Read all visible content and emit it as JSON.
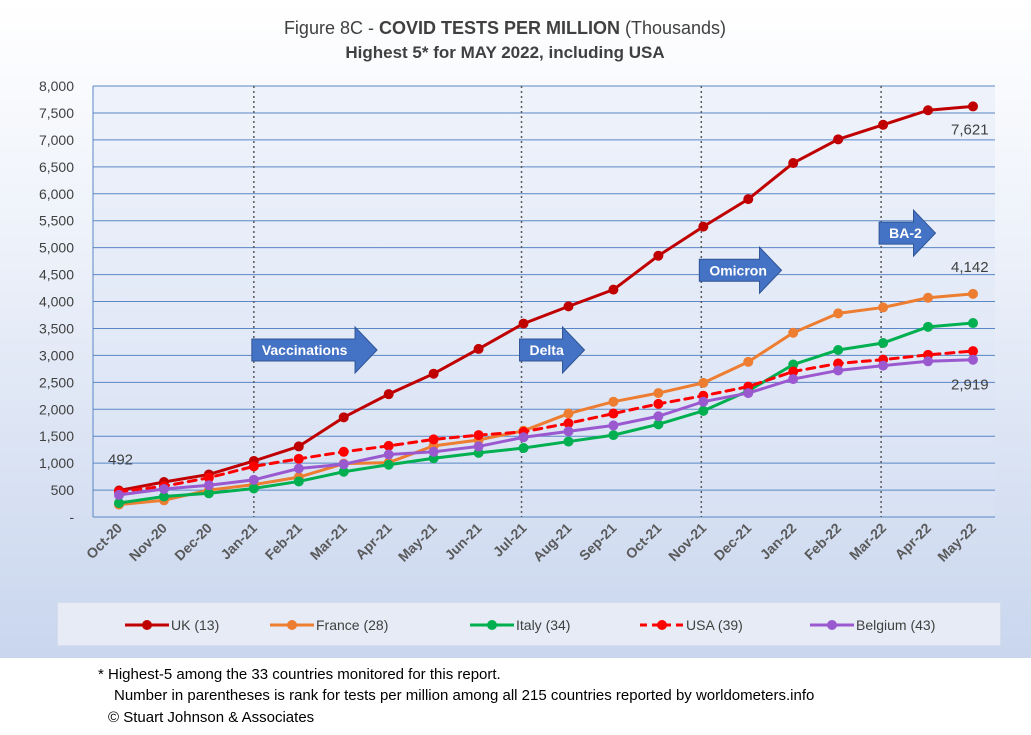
{
  "title": {
    "prefix": "Figure 8C - ",
    "bold": "COVID TESTS PER MILLION",
    "suffix": " (Thousands)",
    "subtitle": "Highest 5* for MAY 2022, including USA"
  },
  "chart_data": {
    "type": "line",
    "categories": [
      "Oct-20",
      "Nov-20",
      "Dec-20",
      "Jan-21",
      "Feb-21",
      "Mar-21",
      "Apr-21",
      "May-21",
      "Jun-21",
      "Jul-21",
      "Aug-21",
      "Sep-21",
      "Oct-21",
      "Nov-21",
      "Dec-21",
      "Jan-22",
      "Feb-22",
      "Mar-22",
      "Apr-22",
      "May-22"
    ],
    "ylim": [
      0,
      8000
    ],
    "yticks": [
      0,
      500,
      1000,
      1500,
      2000,
      2500,
      3000,
      3500,
      4000,
      4500,
      5000,
      5500,
      6000,
      6500,
      7000,
      7500,
      8000
    ],
    "ytick_labels": [
      "-",
      "500",
      "1,000",
      "1,500",
      "2,000",
      "2,500",
      "3,000",
      "3,500",
      "4,000",
      "4,500",
      "5,000",
      "5,500",
      "6,000",
      "6,500",
      "7,000",
      "7,500",
      "8,000"
    ],
    "grid": true,
    "legend_position": "bottom",
    "series": [
      {
        "name": "UK (13)",
        "color": "#c00000",
        "dashed": false,
        "values": [
          492,
          650,
          790,
          1040,
          1310,
          1850,
          2280,
          2660,
          3120,
          3590,
          3910,
          4220,
          4850,
          5390,
          5900,
          6570,
          7010,
          7280,
          7550,
          7621
        ]
      },
      {
        "name": "France (28)",
        "color": "#ed7d31",
        "dashed": false,
        "values": [
          230,
          310,
          500,
          600,
          740,
          990,
          1010,
          1320,
          1430,
          1600,
          1920,
          2140,
          2300,
          2490,
          2880,
          3420,
          3780,
          3890,
          4070,
          4142
        ]
      },
      {
        "name": "Italy (34)",
        "color": "#00b050",
        "dashed": false,
        "values": [
          260,
          380,
          440,
          530,
          660,
          840,
          970,
          1090,
          1190,
          1280,
          1400,
          1520,
          1720,
          1970,
          2340,
          2830,
          3100,
          3230,
          3530,
          3600
        ]
      },
      {
        "name": "USA (39)",
        "color": "#ff0000",
        "dashed": true,
        "values": [
          470,
          570,
          730,
          940,
          1080,
          1210,
          1320,
          1440,
          1520,
          1580,
          1740,
          1920,
          2100,
          2250,
          2420,
          2700,
          2850,
          2920,
          3010,
          3080
        ]
      },
      {
        "name": "Belgium (43)",
        "color": "#9b59d0",
        "dashed": false,
        "values": [
          410,
          520,
          590,
          690,
          900,
          980,
          1160,
          1210,
          1310,
          1480,
          1590,
          1700,
          1870,
          2140,
          2300,
          2560,
          2720,
          2810,
          2890,
          2919
        ]
      }
    ],
    "data_labels": [
      {
        "text": "492",
        "series": 0,
        "index": 0
      },
      {
        "text": "7,621",
        "series": 0,
        "index": 19
      },
      {
        "text": "4,142",
        "series": 1,
        "index": 19
      },
      {
        "text": "2,919",
        "series": 4,
        "index": 19
      }
    ],
    "events": [
      {
        "index": 3,
        "label": "Vaccinations",
        "arrow_y": 3100
      },
      {
        "index": 9,
        "label": "Delta",
        "arrow_y": 3100
      },
      {
        "index": 13,
        "label": "Omicron",
        "arrow_y": 4580
      },
      {
        "index": 17,
        "label": "BA-2",
        "arrow_y": 5270
      }
    ]
  },
  "footnotes": {
    "line1": "* Highest-5 among the 33 countries monitored for this report.",
    "line2": "Number in parentheses is rank for tests per million among all 215 countries reported by worldometers.info",
    "line3": "© Stuart Johnson & Associates"
  }
}
